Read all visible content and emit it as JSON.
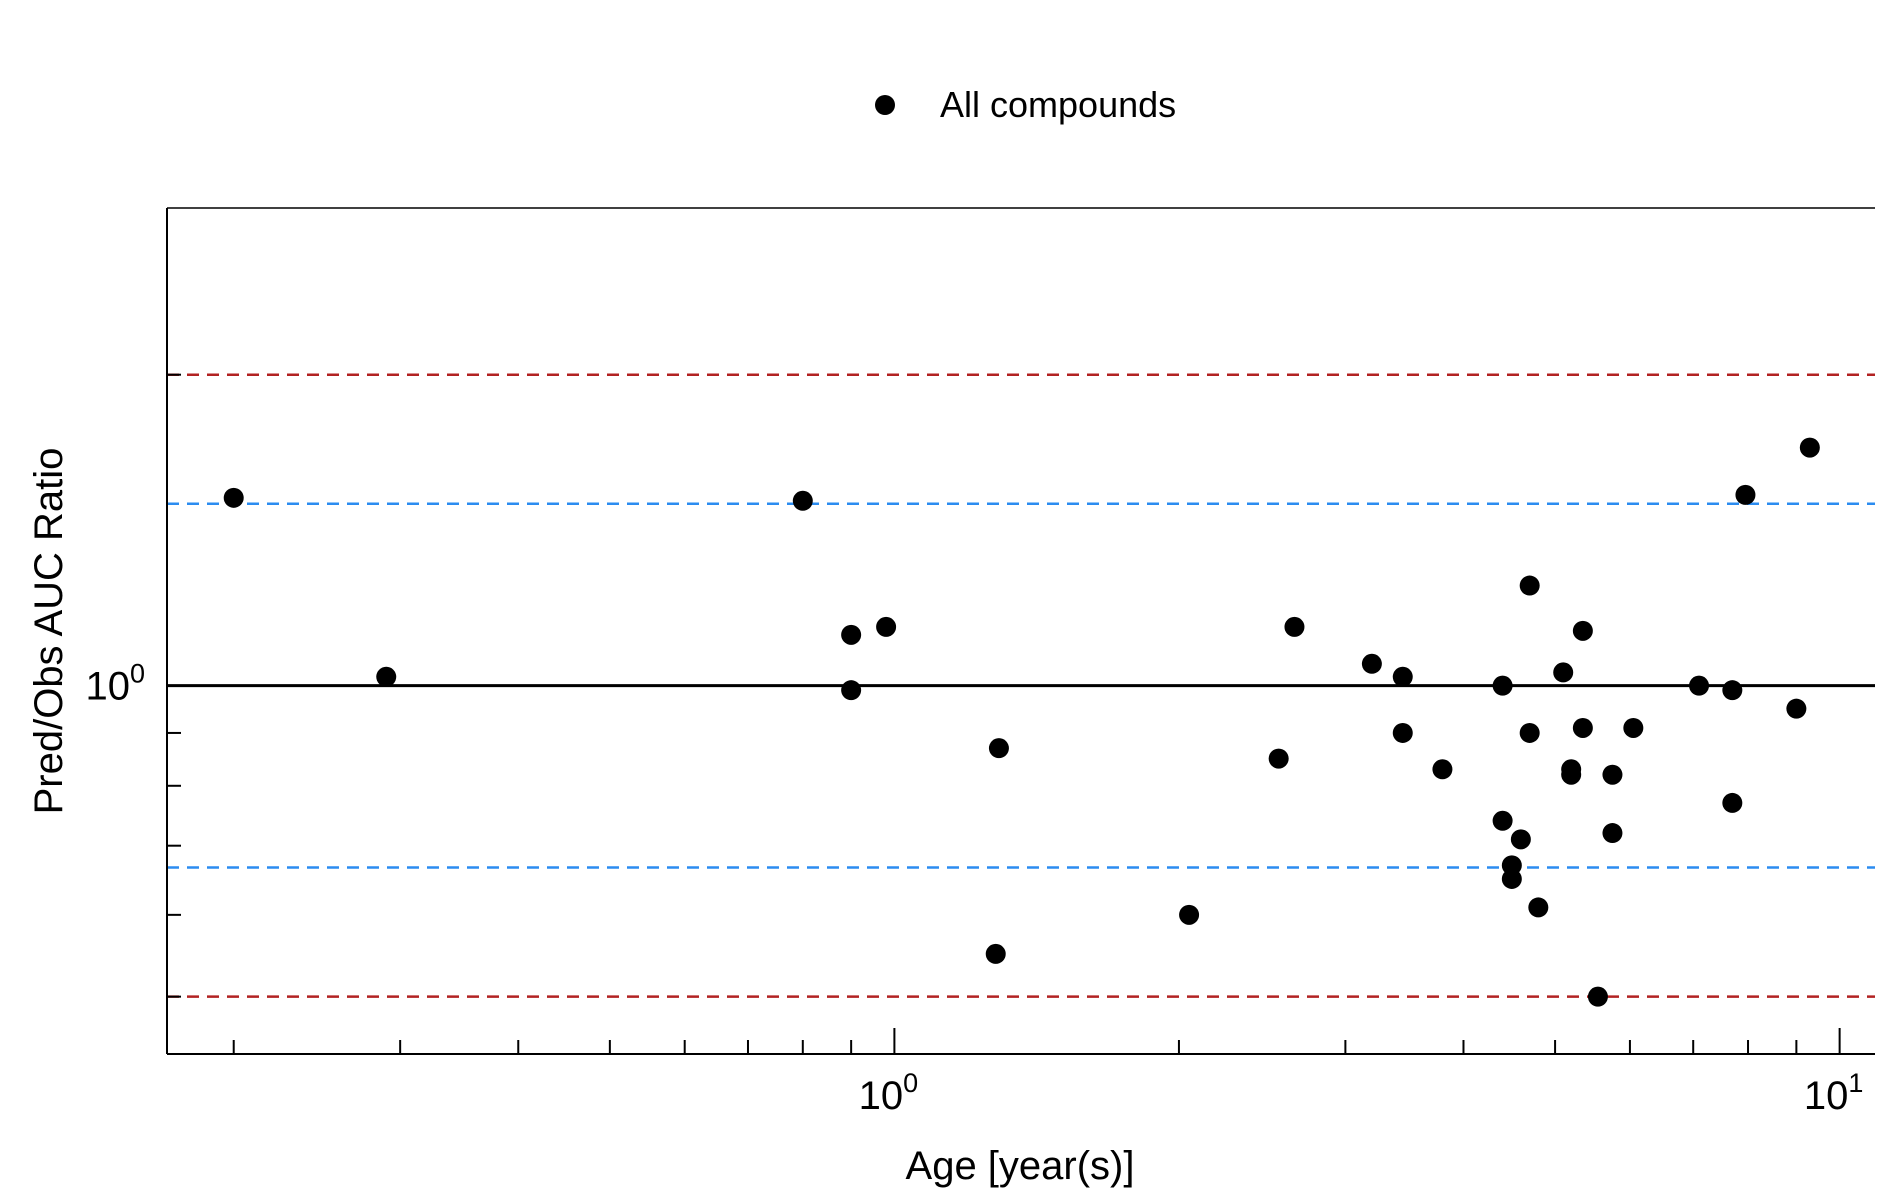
{
  "chart_data": {
    "type": "scatter",
    "x_scale": "log",
    "y_scale": "log",
    "xlabel": "Age [year(s)]",
    "ylabel": "Pred/Obs AUC Ratio",
    "xlim": [
      0.17,
      10.9
    ],
    "ylim": [
      0.44,
      2.9
    ],
    "grid": false,
    "legend": {
      "placement": "top-center",
      "entries": [
        {
          "label": "All compounds",
          "marker": "circle",
          "color": "#000000"
        }
      ]
    },
    "x_major_ticks": [
      {
        "value": 1,
        "base": "10",
        "exp": "0"
      },
      {
        "value": 10,
        "base": "10",
        "exp": "1"
      }
    ],
    "x_minor_ticks": [
      0.2,
      0.3,
      0.4,
      0.5,
      0.6,
      0.7,
      0.8,
      0.9,
      2,
      3,
      4,
      5,
      6,
      7,
      8,
      9
    ],
    "y_major_ticks": [
      {
        "value": 1,
        "base": "10",
        "exp": "0"
      }
    ],
    "y_minor_ticks": [
      0.5,
      0.6,
      0.7,
      0.8,
      0.9,
      2
    ],
    "reference_lines": [
      {
        "y": 1,
        "style": "solid",
        "color": "#000000"
      },
      {
        "y": 1.5,
        "style": "dashed",
        "color": "#2b8cf0"
      },
      {
        "y": 0.6667,
        "style": "dashed",
        "color": "#2b8cf0"
      },
      {
        "y": 2,
        "style": "dashed",
        "color": "#b22222"
      },
      {
        "y": 0.5,
        "style": "dashed",
        "color": "#b22222"
      }
    ],
    "series": [
      {
        "name": "All compounds",
        "color": "#000000",
        "points": [
          {
            "x": 0.2,
            "y": 1.52
          },
          {
            "x": 0.29,
            "y": 1.02
          },
          {
            "x": 0.8,
            "y": 1.51
          },
          {
            "x": 0.9,
            "y": 1.12
          },
          {
            "x": 0.9,
            "y": 0.99
          },
          {
            "x": 0.98,
            "y": 1.14
          },
          {
            "x": 1.29,
            "y": 0.87
          },
          {
            "x": 1.28,
            "y": 0.55
          },
          {
            "x": 2.05,
            "y": 0.6
          },
          {
            "x": 2.55,
            "y": 0.85
          },
          {
            "x": 2.65,
            "y": 1.14
          },
          {
            "x": 3.2,
            "y": 1.05
          },
          {
            "x": 3.45,
            "y": 1.02
          },
          {
            "x": 3.45,
            "y": 0.9
          },
          {
            "x": 3.8,
            "y": 0.83
          },
          {
            "x": 4.4,
            "y": 1.0
          },
          {
            "x": 4.4,
            "y": 0.74
          },
          {
            "x": 4.5,
            "y": 0.67
          },
          {
            "x": 4.5,
            "y": 0.65
          },
          {
            "x": 4.6,
            "y": 0.71
          },
          {
            "x": 4.7,
            "y": 1.25
          },
          {
            "x": 4.7,
            "y": 0.9
          },
          {
            "x": 4.8,
            "y": 0.61
          },
          {
            "x": 5.1,
            "y": 1.03
          },
          {
            "x": 5.2,
            "y": 0.83
          },
          {
            "x": 5.2,
            "y": 0.82
          },
          {
            "x": 5.35,
            "y": 1.13
          },
          {
            "x": 5.35,
            "y": 0.91
          },
          {
            "x": 5.55,
            "y": 0.5
          },
          {
            "x": 5.75,
            "y": 0.82
          },
          {
            "x": 5.75,
            "y": 0.72
          },
          {
            "x": 6.05,
            "y": 0.91
          },
          {
            "x": 7.1,
            "y": 1.0
          },
          {
            "x": 7.7,
            "y": 0.99
          },
          {
            "x": 7.7,
            "y": 0.77
          },
          {
            "x": 7.95,
            "y": 1.53
          },
          {
            "x": 9.0,
            "y": 0.95
          },
          {
            "x": 9.3,
            "y": 1.7
          }
        ]
      }
    ]
  }
}
